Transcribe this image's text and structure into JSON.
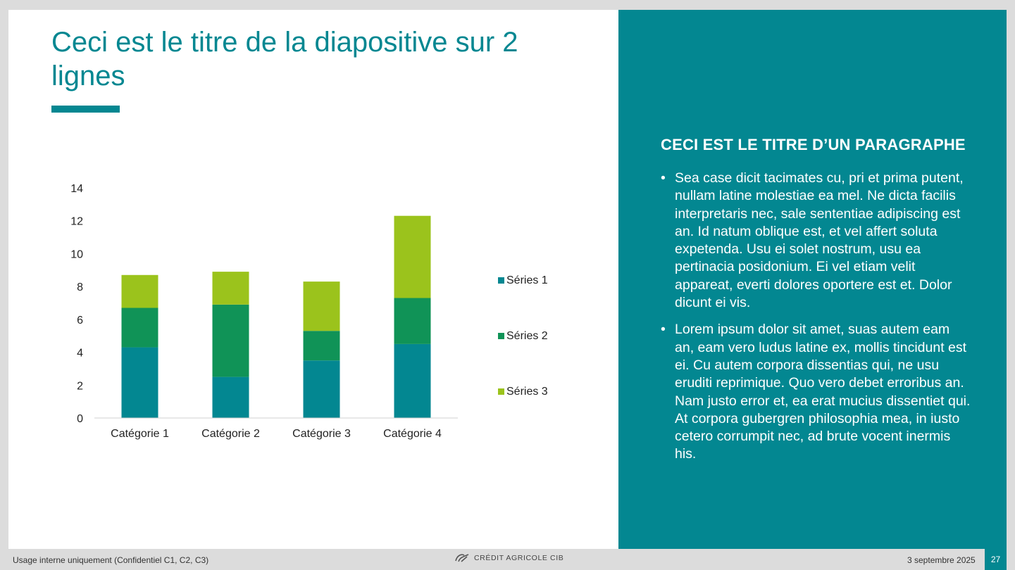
{
  "slide": {
    "title": "Ceci est le titre de la diapositive sur 2 lignes"
  },
  "panel": {
    "title": "CECI EST LE TITRE D’UN PARAGRAPHE",
    "bullets": [
      "Sea case dicit tacimates cu, pri et prima putent, nullam latine molestiae ea mel. Ne dicta facilis interpretaris nec, sale sententiae adipiscing est an. Id natum oblique est, et vel affert soluta expetenda. Usu ei solet nostrum, usu ea pertinacia posidonium. Ei vel etiam velit appareat, everti dolores oportere est et. Dolor dicunt ei vis.",
      "Lorem ipsum dolor sit amet, suas autem eam an, eam vero ludus latine ex, mollis tincidunt est ei. Cu autem corpora dissentias qui, ne usu eruditi reprimique. Quo vero debet erroribus an. Nam justo error et, ea erat mucius dissentiet qui. At corpora gubergren philosophia mea, in iusto cetero corrumpit nec, ad brute vocent inermis his."
    ]
  },
  "footer": {
    "classification": "Usage interne uniquement (Confidentiel C1, C2, C3)",
    "brand": "CRÉDIT AGRICOLE CIB",
    "date": "3 septembre 2025",
    "page": "27"
  },
  "colors": {
    "accent": "#038791",
    "series1": "#038791",
    "series2": "#109357",
    "series3": "#9bc31c"
  },
  "chart_data": {
    "type": "bar",
    "stacked": true,
    "categories": [
      "Catégorie 1",
      "Catégorie 2",
      "Catégorie 3",
      "Catégorie 4"
    ],
    "series": [
      {
        "name": "Séries 1",
        "values": [
          4.3,
          2.5,
          3.5,
          4.5
        ],
        "color": "#038791"
      },
      {
        "name": "Séries 2",
        "values": [
          2.4,
          4.4,
          1.8,
          2.8
        ],
        "color": "#109357"
      },
      {
        "name": "Séries 3",
        "values": [
          2.0,
          2.0,
          3.0,
          5.0
        ],
        "color": "#9bc31c"
      }
    ],
    "yticks": [
      "0",
      "2",
      "4",
      "6",
      "8",
      "10",
      "12",
      "14"
    ],
    "ylim": [
      0,
      14
    ],
    "grid": false,
    "legend": "right"
  }
}
